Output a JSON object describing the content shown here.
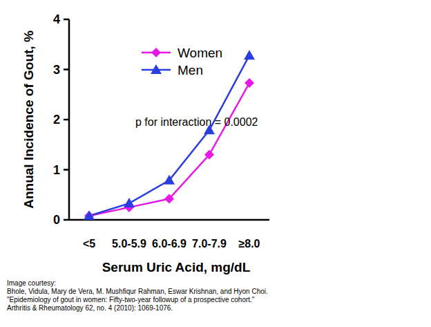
{
  "chart_data": {
    "type": "line",
    "x_label": "Serum Uric Acid, mg/dL",
    "y_label": "Annual Incidence of Gout, %",
    "categories": [
      "<5",
      "5.0-5.9",
      "6.0-6.9",
      "7.0-7.9",
      "≥8.0"
    ],
    "series": [
      {
        "name": "Women",
        "color": "#e619e6",
        "marker": "diamond",
        "values": [
          0.08,
          0.25,
          0.42,
          1.3,
          2.73
        ]
      },
      {
        "name": "Men",
        "color": "#2a3de0",
        "marker": "triangle",
        "values": [
          0.08,
          0.33,
          0.79,
          1.79,
          3.28
        ]
      }
    ],
    "ylim": [
      0,
      4
    ],
    "yticks": [
      0,
      1,
      2,
      3,
      4
    ],
    "legend": "top-left",
    "annotations": [
      "p for interaction = 0.0002"
    ],
    "source": [
      "Image courtesy:",
      "Bhole, Vidula, Mary de Vera, M. Mushfiqur Rahman, Eswar Krishnan, and Hyon Choi.",
      "\"Epidemiology of gout in women: Fifty-two-year followup of a prospective cohort.\"",
      "Arthritis & Rheumatology 62, no. 4 (2010): 1069-1076."
    ]
  }
}
